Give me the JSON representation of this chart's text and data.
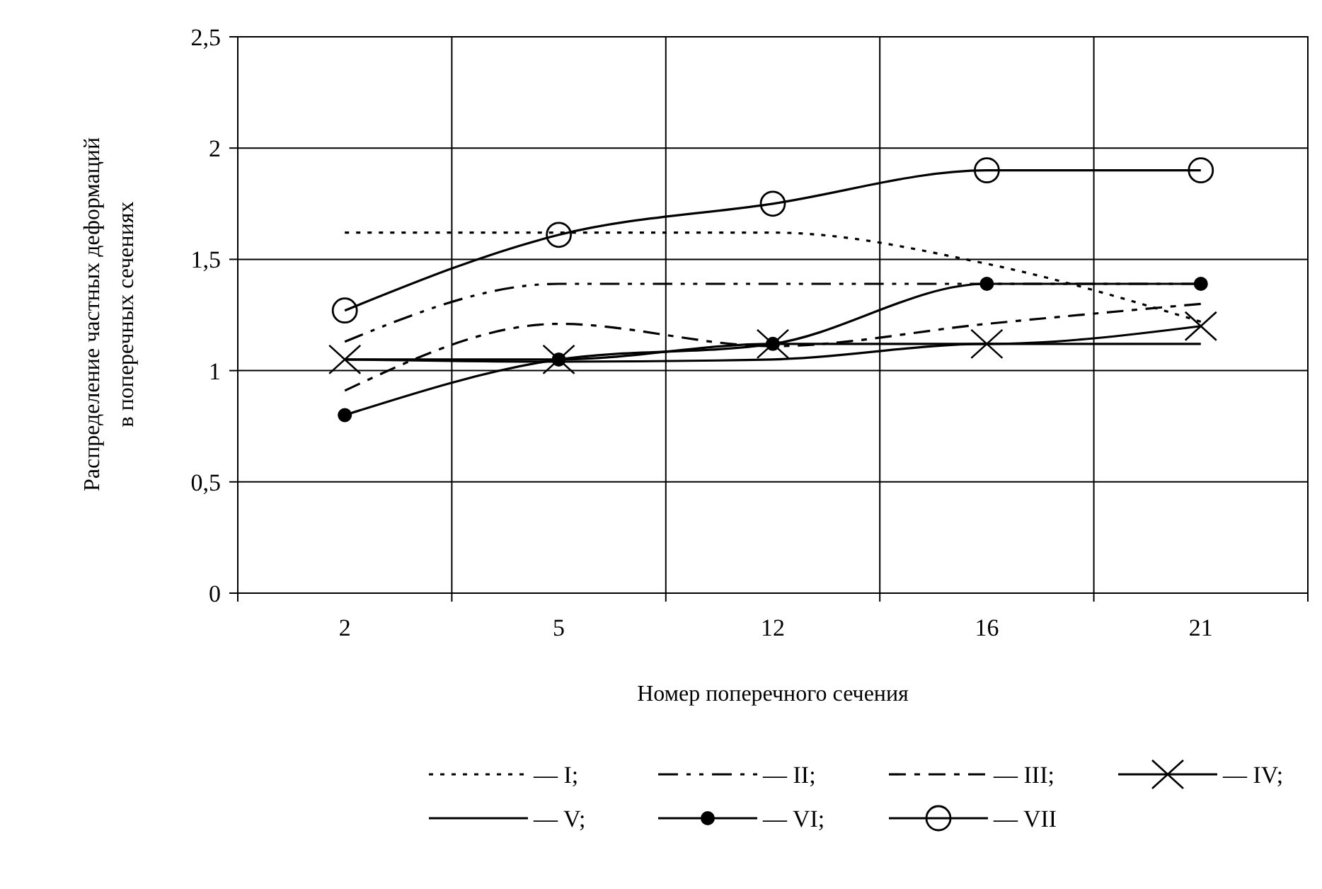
{
  "chart_data": {
    "type": "line",
    "xlabel": "Номер поперечного сечения",
    "ylabel": "Распределение частных деформаций\nв поперечных сечениях",
    "categories": [
      "2",
      "5",
      "12",
      "16",
      "21"
    ],
    "ylim": [
      0,
      2.5
    ],
    "yticks": [
      0,
      {
        "value": 0.5,
        "label": "0,5"
      },
      1,
      {
        "value": 1.5,
        "label": "1,5"
      },
      2,
      {
        "value": 2.5,
        "label": "2,5"
      }
    ],
    "grid": true,
    "legend": "bottom",
    "series": [
      {
        "name": "— I;",
        "color": "#000000",
        "line_style": "dotted",
        "values": [
          1.62,
          1.62,
          1.62,
          1.48,
          1.22
        ]
      },
      {
        "name": "— II;",
        "color": "#000000",
        "line_style": "dashdot",
        "values": [
          1.13,
          1.39,
          1.39,
          1.39,
          1.39
        ]
      },
      {
        "name": "— III;",
        "color": "#000000",
        "line_style": "dashed",
        "values": [
          0.91,
          1.21,
          1.11,
          1.21,
          1.3
        ]
      },
      {
        "name": "— IV;",
        "color": "#000000",
        "line_style": "solid",
        "marker": "cross",
        "values": [
          1.05,
          1.05,
          1.12,
          1.12,
          1.2
        ]
      },
      {
        "name": "— V;",
        "color": "#000000",
        "line_style": "solid",
        "values": [
          1.05,
          1.04,
          1.05,
          1.12,
          1.12
        ]
      },
      {
        "name": "— VI;",
        "color": "#000000",
        "line_style": "solid",
        "marker": "dot",
        "values": [
          0.8,
          1.05,
          1.12,
          1.39,
          1.39
        ]
      },
      {
        "name": "— VII",
        "color": "#000000",
        "line_style": "solid",
        "marker": "circle",
        "values": [
          1.27,
          1.61,
          1.75,
          1.9,
          1.9
        ]
      }
    ]
  }
}
